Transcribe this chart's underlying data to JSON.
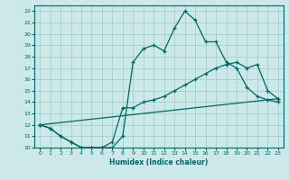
{
  "xlabel": "Humidex (Indice chaleur)",
  "bg_color": "#cce8e8",
  "line_color": "#006666",
  "grid_color": "#99cccc",
  "xlim": [
    -0.5,
    23.5
  ],
  "ylim": [
    10,
    22.5
  ],
  "xticks": [
    0,
    1,
    2,
    3,
    4,
    5,
    6,
    7,
    8,
    9,
    10,
    11,
    12,
    13,
    14,
    15,
    16,
    17,
    18,
    19,
    20,
    21,
    22,
    23
  ],
  "yticks": [
    10,
    11,
    12,
    13,
    14,
    15,
    16,
    17,
    18,
    19,
    20,
    21,
    22
  ],
  "curve1_x": [
    0,
    1,
    2,
    3,
    4,
    5,
    6,
    7,
    8,
    9,
    10,
    11,
    12,
    13,
    14,
    15,
    16,
    17,
    18,
    19,
    20,
    21,
    22,
    23
  ],
  "curve1_y": [
    12,
    11.7,
    11.0,
    10.5,
    10.0,
    10.0,
    10.0,
    10.0,
    11.0,
    17.5,
    18.7,
    19.0,
    18.5,
    20.5,
    22.0,
    21.2,
    19.3,
    19.3,
    17.5,
    17.0,
    15.3,
    14.5,
    14.2,
    14.0
  ],
  "curve2_x": [
    0,
    1,
    2,
    3,
    4,
    5,
    6,
    7,
    8,
    9,
    10,
    11,
    12,
    13,
    14,
    15,
    16,
    17,
    18,
    19,
    20,
    21,
    22,
    23
  ],
  "curve2_y": [
    12,
    11.7,
    11.0,
    10.5,
    10.0,
    10.0,
    10.0,
    10.5,
    13.5,
    13.5,
    14.0,
    14.2,
    14.5,
    15.0,
    15.5,
    16.0,
    16.5,
    17.0,
    17.3,
    17.5,
    17.0,
    17.3,
    15.0,
    14.3
  ],
  "curve3_x": [
    0,
    23
  ],
  "curve3_y": [
    12,
    14.3
  ]
}
